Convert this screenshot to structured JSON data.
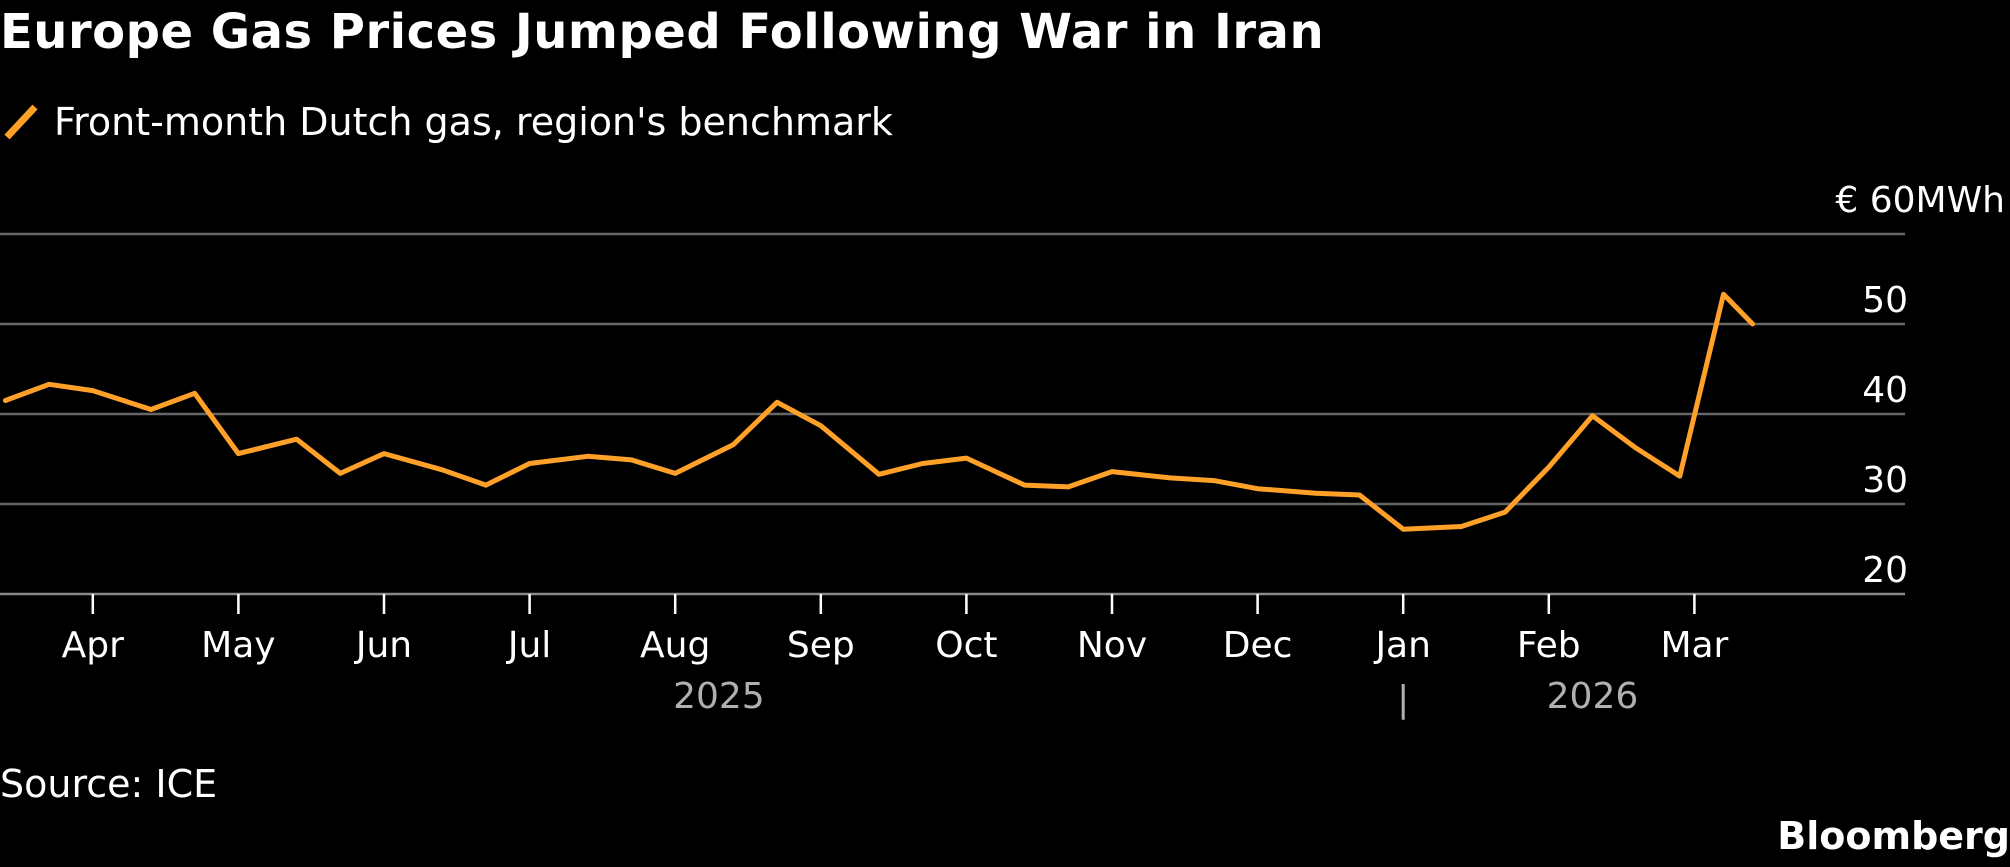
{
  "title": "Europe Gas Prices Jumped Following War in Iran",
  "source": "Source: ICE",
  "brand": "Bloomberg",
  "colors": {
    "series": "#ffa028",
    "background": "#000000",
    "grid": "#666666",
    "text": "#ffffff",
    "year": "#b0b0b0"
  },
  "chart_data": {
    "type": "line",
    "series": [
      {
        "name": "Front-month Dutch gas, region's benchmark",
        "color": "#ffa028",
        "x": [
          0,
          0.3,
          0.6,
          1,
          1.3,
          1.6,
          2,
          2.3,
          2.6,
          3,
          3.3,
          3.6,
          4,
          4.3,
          4.6,
          5,
          5.3,
          5.6,
          6,
          6.3,
          6.6,
          7,
          7.3,
          7.6,
          8,
          8.3,
          8.6,
          9,
          9.3,
          9.6,
          10,
          10.3,
          10.6,
          10.9,
          11.2,
          11.5,
          11.8,
          12
        ],
        "values": [
          41.5,
          43.3,
          42.6,
          40.5,
          42.3,
          35.6,
          37.2,
          33.4,
          35.6,
          33.8,
          32.1,
          34.5,
          35.3,
          34.9,
          33.4,
          36.6,
          41.3,
          38.7,
          33.3,
          34.5,
          35.1,
          32.1,
          31.9,
          33.6,
          32.9,
          32.6,
          31.7,
          31.2,
          31.0,
          27.2,
          27.5,
          29.1,
          34.1,
          39.8,
          36.2,
          33.1,
          53.3,
          50.0
        ],
        "last_label": "Mar"
      }
    ],
    "x_tick_labels": [
      "Apr",
      "May",
      "Jun",
      "Jul",
      "Aug",
      "Sep",
      "Oct",
      "Nov",
      "Dec",
      "Jan",
      "Feb",
      "Mar"
    ],
    "x_tick_positions": [
      0.6,
      1.6,
      2.6,
      3.6,
      4.6,
      5.6,
      6.6,
      7.6,
      8.6,
      9.6,
      10.6,
      11.6
    ],
    "x_range": [
      0.1,
      12.6
    ],
    "year_labels": [
      {
        "label": "2025",
        "x": 4.9
      },
      {
        "label": "2026",
        "x": 10.9
      }
    ],
    "year_separator": "|",
    "year_separator_x": 9.6,
    "y_ticks": [
      20,
      30,
      40,
      50
    ],
    "y_top_label": "€ 60MWh",
    "y_top_value": 60,
    "ylim": [
      20,
      60
    ],
    "grid": true,
    "ylabel": "€ MWh"
  }
}
